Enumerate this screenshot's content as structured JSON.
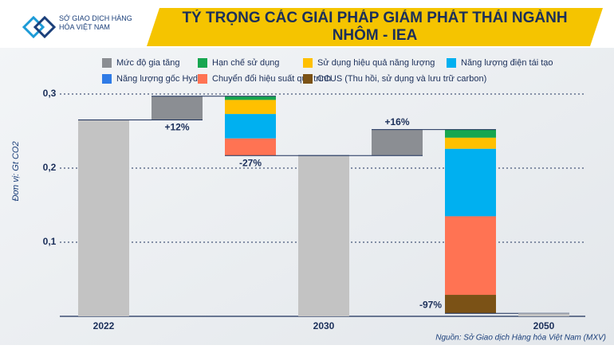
{
  "logo": "SỞ GIAO DỊCH HÀNG HÓA VIỆT NAM",
  "chart_data": {
    "type": "waterfall",
    "title": "TỶ TRỌNG CÁC GIẢI PHÁP GIẢM PHÁT THẢI NGÀNH NHÔM - IEA",
    "y_label": "Đơn vị: Gt CO2",
    "source": "Nguồn: Sở Giao dịch Hàng hóa Việt Nam (MXV)",
    "categories": [
      "2022",
      null,
      null,
      "2030",
      null,
      null,
      "2050"
    ],
    "totals": {
      "color": "#c3c3c3",
      "values": [
        0.265,
        null,
        null,
        0.217,
        null,
        null,
        0.004
      ]
    },
    "series": [
      {
        "name": "Mức độ gia tăng",
        "color": "#8b8e93",
        "values": [
          null,
          0.032,
          null,
          null,
          0.035,
          null,
          null
        ]
      },
      {
        "name": "Hạn chế sử dụng",
        "color": "#17a650",
        "values": [
          null,
          null,
          -0.005,
          null,
          null,
          -0.011,
          null
        ]
      },
      {
        "name": "Sử dụng hiệu quả năng lượng",
        "color": "#ffc000",
        "values": [
          null,
          null,
          -0.019,
          null,
          null,
          -0.015,
          null
        ]
      },
      {
        "name": "Năng lượng điện tái tạo",
        "color": "#00b0f0",
        "values": [
          null,
          null,
          -0.033,
          null,
          null,
          -0.091,
          null
        ]
      },
      {
        "name": "Năng lượng gốc Hydro",
        "color": "#2f7be6",
        "values": [
          null,
          null,
          0,
          null,
          null,
          0,
          null
        ]
      },
      {
        "name": "Chuyển đổi hiệu suất quy trình",
        "color": "#ff7353",
        "values": [
          null,
          null,
          -0.023,
          null,
          null,
          -0.106,
          null
        ]
      },
      {
        "name": "CCUS (Thu hồi, sử dụng và lưu trữ carbon)",
        "color": "#7b5216",
        "values": [
          null,
          null,
          0,
          null,
          null,
          -0.025,
          null
        ]
      }
    ],
    "value_labels": [
      null,
      "+12%",
      "-27%",
      null,
      "+16%",
      "-97%",
      null
    ],
    "ylim": [
      0,
      0.3
    ],
    "yticks": [
      {
        "value": 0.1,
        "label": "0,1"
      },
      {
        "value": 0.2,
        "label": "0,2"
      },
      {
        "value": 0.3,
        "label": "0,3"
      }
    ],
    "grid": true
  }
}
